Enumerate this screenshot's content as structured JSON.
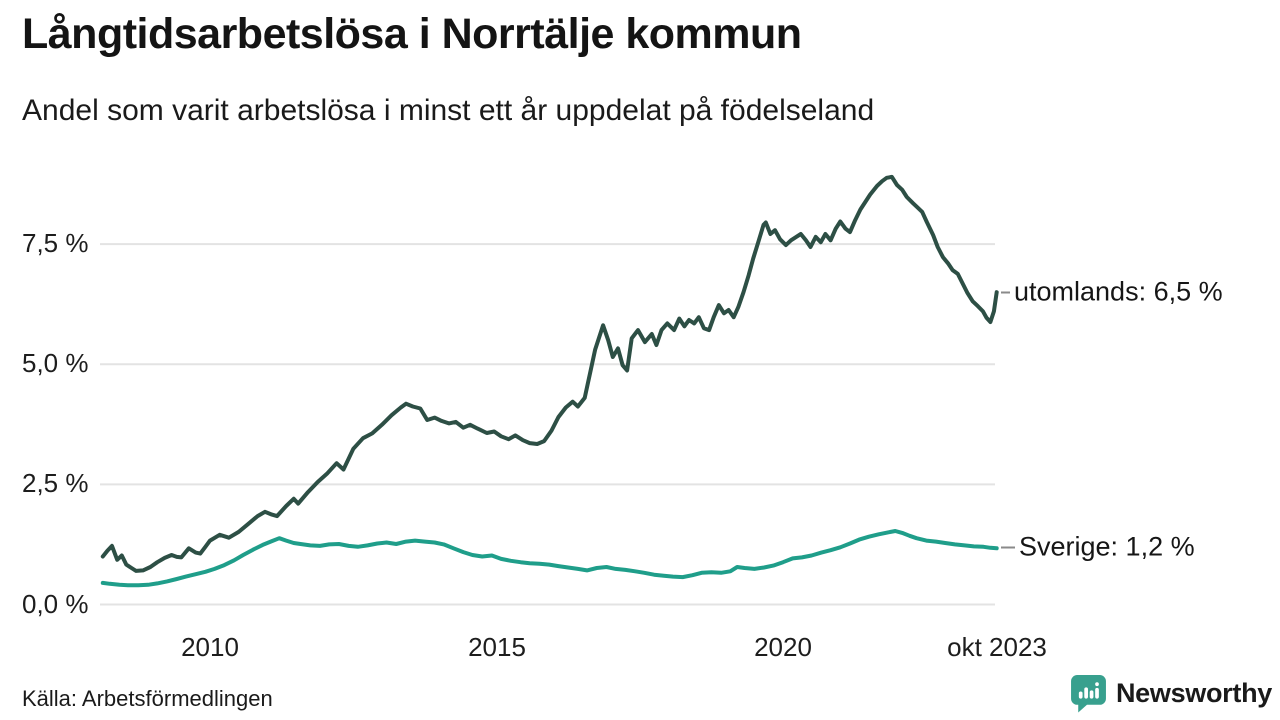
{
  "header": {
    "title": "Långtidsarbetslösa i Norrtälje kommun",
    "subtitle": "Andel som varit arbetslösa i minst ett år uppdelat på födelseland"
  },
  "footer": {
    "source": "Källa: Arbetsförmedlingen",
    "branding": {
      "name": "Newsworthy",
      "color": "#38a08e",
      "icon": "speech-bubble-bar-chart"
    }
  },
  "chart_data": {
    "type": "line",
    "title": "Långtidsarbetslösa i Norrtälje kommun",
    "subtitle": "Andel som varit arbetslösa i minst ett år uppdelat på födelseland",
    "unit": "%",
    "grid": true,
    "grid_color": "#e3e3e3",
    "x_axis": {
      "range": [
        2008.1,
        2023.8
      ],
      "ticks": [
        {
          "value": 2010,
          "label": "2010"
        },
        {
          "value": 2015,
          "label": "2015"
        },
        {
          "value": 2020,
          "label": "2020"
        },
        {
          "value": 2023.73,
          "label": "okt 2023"
        }
      ]
    },
    "y_axis": {
      "range": [
        0,
        9.3
      ],
      "ticks": [
        {
          "value": 0,
          "label": "0,0 %"
        },
        {
          "value": 2.5,
          "label": "2,5 %"
        },
        {
          "value": 5,
          "label": "5,0 %"
        },
        {
          "value": 7.5,
          "label": "7,5 %"
        }
      ]
    },
    "series": [
      {
        "name": "utomlands",
        "end_label": "utomlands: 6,5 %",
        "end_value": 6.5,
        "color": "#2d4f45",
        "points": [
          [
            2008.13,
            1.0
          ],
          [
            2008.21,
            1.12
          ],
          [
            2008.29,
            1.22
          ],
          [
            2008.38,
            0.93
          ],
          [
            2008.46,
            1.02
          ],
          [
            2008.54,
            0.83
          ],
          [
            2008.63,
            0.76
          ],
          [
            2008.71,
            0.7
          ],
          [
            2008.83,
            0.71
          ],
          [
            2008.96,
            0.78
          ],
          [
            2009.08,
            0.88
          ],
          [
            2009.21,
            0.97
          ],
          [
            2009.33,
            1.03
          ],
          [
            2009.42,
            0.99
          ],
          [
            2009.5,
            0.98
          ],
          [
            2009.63,
            1.17
          ],
          [
            2009.75,
            1.08
          ],
          [
            2009.83,
            1.06
          ],
          [
            2009.92,
            1.2
          ],
          [
            2010.0,
            1.33
          ],
          [
            2010.17,
            1.45
          ],
          [
            2010.33,
            1.39
          ],
          [
            2010.5,
            1.51
          ],
          [
            2010.67,
            1.68
          ],
          [
            2010.83,
            1.84
          ],
          [
            2010.96,
            1.93
          ],
          [
            2011.08,
            1.87
          ],
          [
            2011.17,
            1.84
          ],
          [
            2011.33,
            2.05
          ],
          [
            2011.46,
            2.2
          ],
          [
            2011.54,
            2.1
          ],
          [
            2011.71,
            2.34
          ],
          [
            2011.88,
            2.55
          ],
          [
            2012.04,
            2.72
          ],
          [
            2012.21,
            2.94
          ],
          [
            2012.33,
            2.81
          ],
          [
            2012.5,
            3.24
          ],
          [
            2012.67,
            3.46
          ],
          [
            2012.83,
            3.56
          ],
          [
            2013.0,
            3.74
          ],
          [
            2013.17,
            3.94
          ],
          [
            2013.33,
            4.1
          ],
          [
            2013.42,
            4.18
          ],
          [
            2013.54,
            4.12
          ],
          [
            2013.67,
            4.08
          ],
          [
            2013.79,
            3.84
          ],
          [
            2013.92,
            3.89
          ],
          [
            2014.04,
            3.82
          ],
          [
            2014.17,
            3.77
          ],
          [
            2014.29,
            3.8
          ],
          [
            2014.42,
            3.68
          ],
          [
            2014.54,
            3.74
          ],
          [
            2014.67,
            3.66
          ],
          [
            2014.83,
            3.57
          ],
          [
            2014.96,
            3.6
          ],
          [
            2015.08,
            3.5
          ],
          [
            2015.21,
            3.44
          ],
          [
            2015.33,
            3.52
          ],
          [
            2015.46,
            3.42
          ],
          [
            2015.58,
            3.36
          ],
          [
            2015.71,
            3.34
          ],
          [
            2015.83,
            3.4
          ],
          [
            2015.96,
            3.62
          ],
          [
            2016.08,
            3.9
          ],
          [
            2016.21,
            4.1
          ],
          [
            2016.33,
            4.22
          ],
          [
            2016.42,
            4.12
          ],
          [
            2016.54,
            4.3
          ],
          [
            2016.63,
            4.8
          ],
          [
            2016.72,
            5.3
          ],
          [
            2016.86,
            5.81
          ],
          [
            2016.95,
            5.5
          ],
          [
            2017.03,
            5.15
          ],
          [
            2017.12,
            5.33
          ],
          [
            2017.2,
            4.98
          ],
          [
            2017.28,
            4.87
          ],
          [
            2017.36,
            5.54
          ],
          [
            2017.47,
            5.71
          ],
          [
            2017.59,
            5.46
          ],
          [
            2017.71,
            5.63
          ],
          [
            2017.79,
            5.4
          ],
          [
            2017.88,
            5.71
          ],
          [
            2017.98,
            5.85
          ],
          [
            2018.1,
            5.71
          ],
          [
            2018.19,
            5.95
          ],
          [
            2018.28,
            5.79
          ],
          [
            2018.36,
            5.92
          ],
          [
            2018.45,
            5.85
          ],
          [
            2018.53,
            5.98
          ],
          [
            2018.62,
            5.75
          ],
          [
            2018.71,
            5.71
          ],
          [
            2018.79,
            5.98
          ],
          [
            2018.88,
            6.23
          ],
          [
            2018.97,
            6.06
          ],
          [
            2019.05,
            6.13
          ],
          [
            2019.14,
            5.98
          ],
          [
            2019.22,
            6.19
          ],
          [
            2019.31,
            6.5
          ],
          [
            2019.4,
            6.85
          ],
          [
            2019.48,
            7.2
          ],
          [
            2019.57,
            7.55
          ],
          [
            2019.66,
            7.9
          ],
          [
            2019.7,
            7.95
          ],
          [
            2019.78,
            7.71
          ],
          [
            2019.86,
            7.79
          ],
          [
            2019.95,
            7.6
          ],
          [
            2020.05,
            7.48
          ],
          [
            2020.14,
            7.58
          ],
          [
            2020.23,
            7.65
          ],
          [
            2020.31,
            7.71
          ],
          [
            2020.4,
            7.58
          ],
          [
            2020.48,
            7.44
          ],
          [
            2020.57,
            7.65
          ],
          [
            2020.66,
            7.54
          ],
          [
            2020.74,
            7.71
          ],
          [
            2020.83,
            7.58
          ],
          [
            2020.92,
            7.82
          ],
          [
            2021.0,
            7.97
          ],
          [
            2021.09,
            7.82
          ],
          [
            2021.17,
            7.75
          ],
          [
            2021.26,
            8.0
          ],
          [
            2021.35,
            8.22
          ],
          [
            2021.52,
            8.53
          ],
          [
            2021.64,
            8.71
          ],
          [
            2021.73,
            8.81
          ],
          [
            2021.81,
            8.88
          ],
          [
            2021.9,
            8.9
          ],
          [
            2021.99,
            8.73
          ],
          [
            2022.08,
            8.63
          ],
          [
            2022.16,
            8.48
          ],
          [
            2022.27,
            8.35
          ],
          [
            2022.34,
            8.27
          ],
          [
            2022.43,
            8.17
          ],
          [
            2022.51,
            7.96
          ],
          [
            2022.62,
            7.69
          ],
          [
            2022.7,
            7.44
          ],
          [
            2022.79,
            7.23
          ],
          [
            2022.88,
            7.1
          ],
          [
            2022.96,
            6.96
          ],
          [
            2023.05,
            6.88
          ],
          [
            2023.14,
            6.67
          ],
          [
            2023.22,
            6.48
          ],
          [
            2023.31,
            6.31
          ],
          [
            2023.4,
            6.21
          ],
          [
            2023.49,
            6.1
          ],
          [
            2023.55,
            5.97
          ],
          [
            2023.62,
            5.88
          ],
          [
            2023.68,
            6.1
          ],
          [
            2023.73,
            6.5
          ]
        ]
      },
      {
        "name": "Sverige",
        "end_label": "Sverige: 1,2 %",
        "end_value": 1.2,
        "color": "#1f9e8a",
        "points": [
          [
            2008.13,
            0.45
          ],
          [
            2008.25,
            0.43
          ],
          [
            2008.42,
            0.41
          ],
          [
            2008.58,
            0.4
          ],
          [
            2008.75,
            0.4
          ],
          [
            2008.92,
            0.41
          ],
          [
            2009.08,
            0.44
          ],
          [
            2009.25,
            0.48
          ],
          [
            2009.42,
            0.53
          ],
          [
            2009.58,
            0.58
          ],
          [
            2009.75,
            0.63
          ],
          [
            2009.92,
            0.68
          ],
          [
            2010.08,
            0.74
          ],
          [
            2010.25,
            0.82
          ],
          [
            2010.42,
            0.92
          ],
          [
            2010.58,
            1.03
          ],
          [
            2010.75,
            1.14
          ],
          [
            2010.92,
            1.24
          ],
          [
            2011.08,
            1.32
          ],
          [
            2011.21,
            1.38
          ],
          [
            2011.33,
            1.33
          ],
          [
            2011.46,
            1.28
          ],
          [
            2011.58,
            1.26
          ],
          [
            2011.75,
            1.23
          ],
          [
            2011.92,
            1.22
          ],
          [
            2012.08,
            1.25
          ],
          [
            2012.25,
            1.26
          ],
          [
            2012.42,
            1.22
          ],
          [
            2012.58,
            1.2
          ],
          [
            2012.75,
            1.23
          ],
          [
            2012.92,
            1.27
          ],
          [
            2013.08,
            1.29
          ],
          [
            2013.25,
            1.26
          ],
          [
            2013.42,
            1.31
          ],
          [
            2013.58,
            1.33
          ],
          [
            2013.75,
            1.31
          ],
          [
            2013.92,
            1.29
          ],
          [
            2014.08,
            1.25
          ],
          [
            2014.25,
            1.17
          ],
          [
            2014.42,
            1.09
          ],
          [
            2014.58,
            1.03
          ],
          [
            2014.75,
            1.0
          ],
          [
            2014.92,
            1.02
          ],
          [
            2015.08,
            0.95
          ],
          [
            2015.25,
            0.91
          ],
          [
            2015.42,
            0.88
          ],
          [
            2015.58,
            0.86
          ],
          [
            2015.75,
            0.85
          ],
          [
            2015.92,
            0.83
          ],
          [
            2016.08,
            0.8
          ],
          [
            2016.25,
            0.77
          ],
          [
            2016.42,
            0.74
          ],
          [
            2016.58,
            0.71
          ],
          [
            2016.75,
            0.76
          ],
          [
            2016.92,
            0.78
          ],
          [
            2017.08,
            0.74
          ],
          [
            2017.25,
            0.72
          ],
          [
            2017.42,
            0.69
          ],
          [
            2017.58,
            0.66
          ],
          [
            2017.75,
            0.62
          ],
          [
            2017.92,
            0.6
          ],
          [
            2018.08,
            0.58
          ],
          [
            2018.25,
            0.57
          ],
          [
            2018.42,
            0.61
          ],
          [
            2018.58,
            0.66
          ],
          [
            2018.75,
            0.67
          ],
          [
            2018.92,
            0.66
          ],
          [
            2019.08,
            0.69
          ],
          [
            2019.2,
            0.78
          ],
          [
            2019.33,
            0.76
          ],
          [
            2019.5,
            0.74
          ],
          [
            2019.67,
            0.77
          ],
          [
            2019.83,
            0.81
          ],
          [
            2020.0,
            0.88
          ],
          [
            2020.17,
            0.96
          ],
          [
            2020.33,
            0.98
          ],
          [
            2020.5,
            1.02
          ],
          [
            2020.67,
            1.08
          ],
          [
            2020.83,
            1.13
          ],
          [
            2021.0,
            1.19
          ],
          [
            2021.17,
            1.27
          ],
          [
            2021.33,
            1.35
          ],
          [
            2021.5,
            1.41
          ],
          [
            2021.67,
            1.46
          ],
          [
            2021.83,
            1.5
          ],
          [
            2021.96,
            1.53
          ],
          [
            2022.08,
            1.49
          ],
          [
            2022.21,
            1.43
          ],
          [
            2022.33,
            1.38
          ],
          [
            2022.5,
            1.33
          ],
          [
            2022.67,
            1.31
          ],
          [
            2022.83,
            1.28
          ],
          [
            2023.0,
            1.25
          ],
          [
            2023.17,
            1.23
          ],
          [
            2023.33,
            1.21
          ],
          [
            2023.5,
            1.2
          ],
          [
            2023.62,
            1.18
          ],
          [
            2023.73,
            1.17
          ]
        ]
      }
    ],
    "legend_position": "right-end-labels"
  }
}
